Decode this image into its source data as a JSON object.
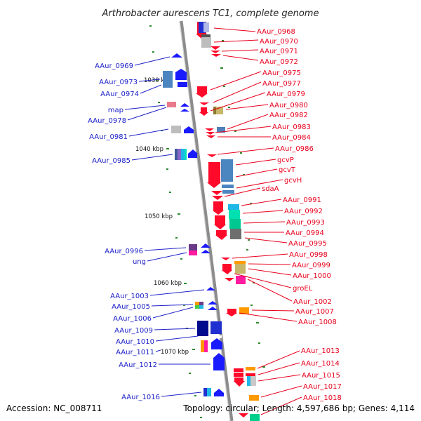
{
  "title": "Arthrobacter aurescens TC1, complete genome",
  "footer": {
    "accession": "Accession: NC_008711",
    "summary": "Topology: circular; Length: 4,597,686 bp; Genes: 4,114"
  },
  "scale_ticks": [
    "1030 kbp",
    "1040 kbp",
    "1050 kbp",
    "1060 kbp",
    "1070 kbp"
  ],
  "reverse_genes": [
    "AAur_0968",
    "AAur_0970",
    "AAur_0971",
    "AAur_0972",
    "AAur_0975",
    "AAur_0977",
    "AAur_0979",
    "AAur_0980",
    "AAur_0982",
    "AAur_0983",
    "AAur_0984",
    "AAur_0986",
    "gcvP",
    "gcvT",
    "gcvH",
    "sdaA",
    "AAur_0991",
    "AAur_0992",
    "AAur_0993",
    "AAur_0994",
    "AAur_0995",
    "AAur_0998",
    "AAur_0999",
    "AAur_1000",
    "groEL",
    "AAur_1002",
    "AAur_1007",
    "AAur_1008",
    "AAur_1013",
    "AAur_1014",
    "AAur_1015",
    "AAur_1017",
    "AAur_1018"
  ],
  "forward_genes": [
    "AAur_0969",
    "AAur_0973",
    "AAur_0974",
    "map",
    "AAur_0978",
    "AAur_0981",
    "AAur_0985",
    "AAur_0996",
    "ung",
    "AAur_1003",
    "AAur_1005",
    "AAur_1006",
    "AAur_1009",
    "AAur_1010",
    "AAur_1011",
    "AAur_1012",
    "AAur_1016"
  ],
  "colors": {
    "reverse": "#e8001c",
    "forward": "#1e22c8",
    "backbone": "#8c8c8c",
    "gc_ticks": "#2e8b2e"
  }
}
